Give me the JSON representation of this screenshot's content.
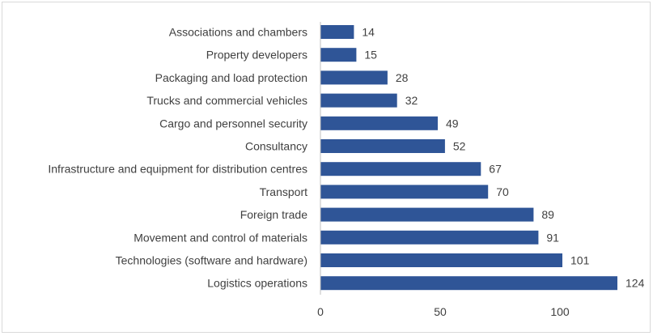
{
  "chart_data": {
    "type": "bar",
    "orientation": "horizontal",
    "categories": [
      "Associations and chambers",
      "Property developers",
      "Packaging and load protection",
      "Trucks and commercial vehicles",
      "Cargo and personnel security",
      "Consultancy",
      "Infrastructure and equipment for distribution centres",
      "Transport",
      "Foreign trade",
      "Movement and control of materials",
      "Technologies (software and hardware)",
      "Logistics operations"
    ],
    "values": [
      14,
      15,
      28,
      32,
      49,
      52,
      67,
      70,
      89,
      91,
      101,
      124
    ],
    "data_labels": [
      "14",
      "15",
      "28",
      "32",
      "49",
      "52",
      "67",
      "70",
      "89",
      "91",
      "101",
      "124"
    ],
    "x_ticks": [
      "0",
      "50",
      "100"
    ],
    "xlim": [
      0,
      130
    ],
    "grid": false,
    "legend": "none",
    "bar_color": "#2f5597",
    "text_color": "#404040",
    "axis_color": "#bfbfbf"
  }
}
